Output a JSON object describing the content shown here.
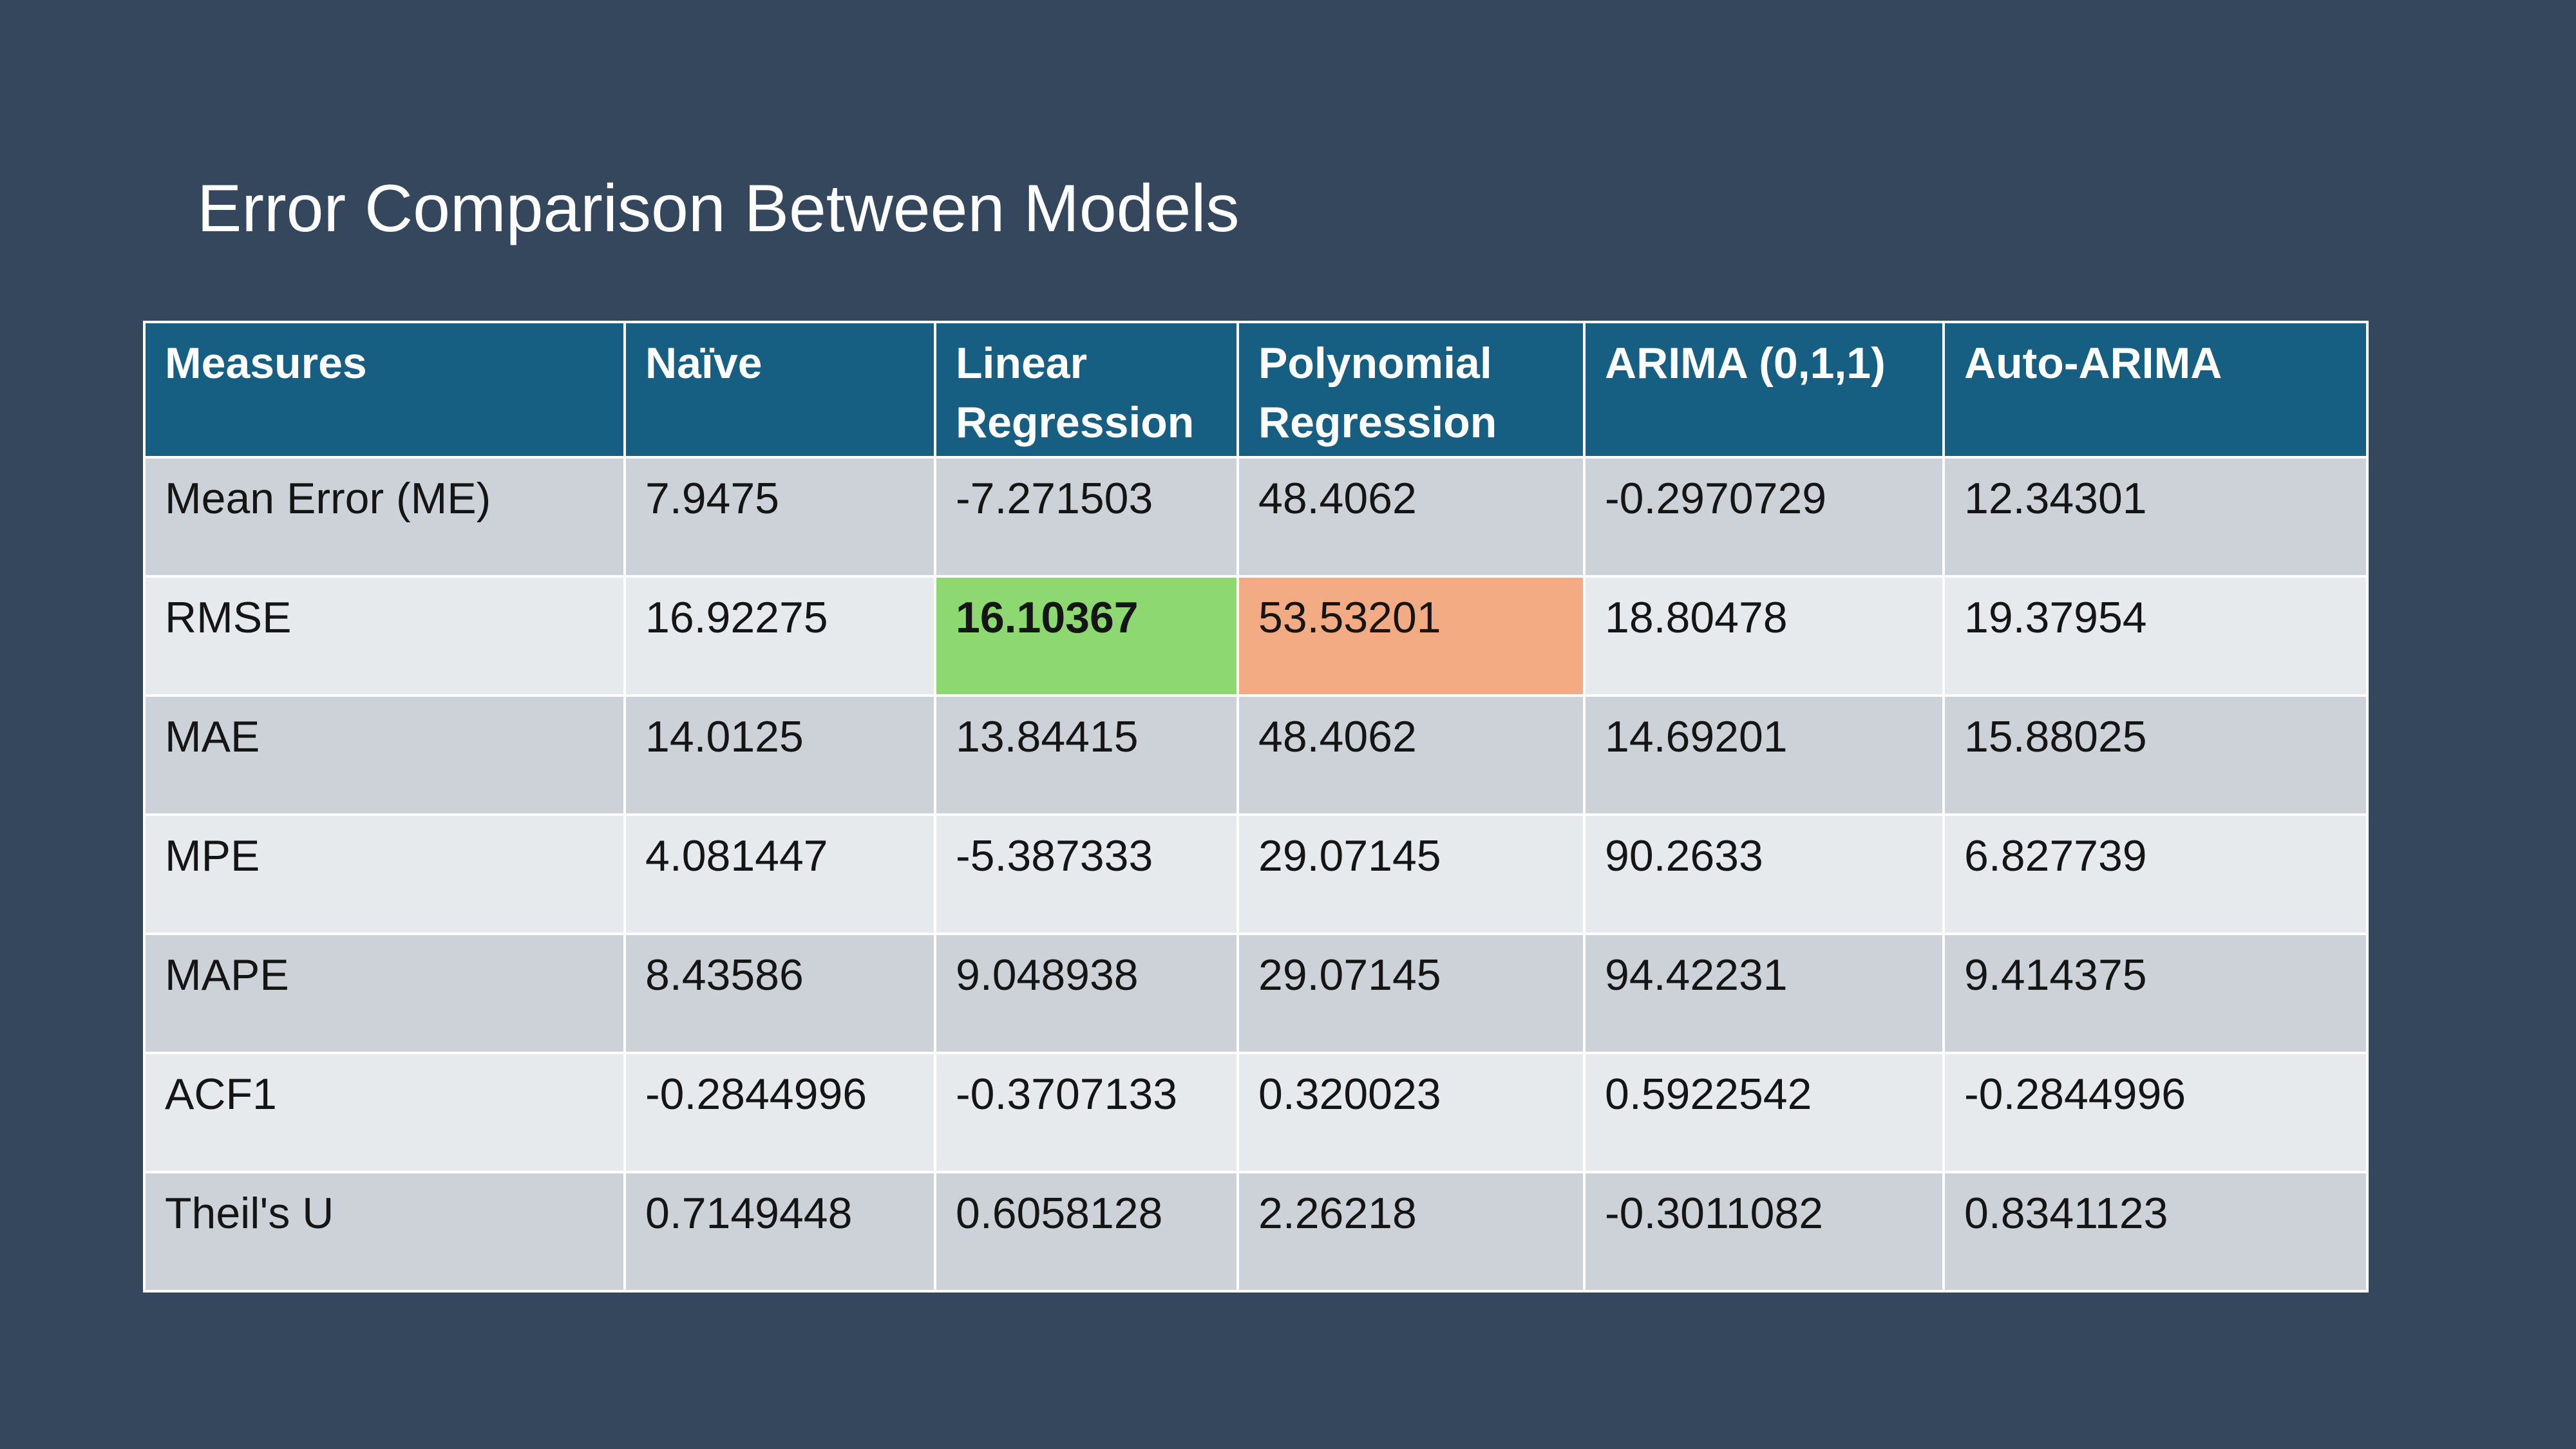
{
  "title": "Error Comparison Between Models",
  "table": {
    "headers": [
      "Measures",
      "Naïve",
      "Linear Regression",
      "Polynomial Regression",
      "ARIMA (0,1,1)",
      "Auto-ARIMA"
    ],
    "rows": [
      {
        "measure": "Mean Error (ME)",
        "values": [
          "7.9475",
          "-7.271503",
          "48.4062",
          "-0.2970729",
          "12.34301"
        ]
      },
      {
        "measure": "RMSE",
        "values": [
          "16.92275",
          "16.10367",
          "53.53201",
          "18.80478",
          "19.37954"
        ]
      },
      {
        "measure": "MAE",
        "values": [
          "14.0125",
          "13.84415",
          "48.4062",
          "14.69201",
          "15.88025"
        ]
      },
      {
        "measure": "MPE",
        "values": [
          "4.081447",
          "-5.387333",
          "29.07145",
          "90.2633",
          "6.827739"
        ]
      },
      {
        "measure": "MAPE",
        "values": [
          "8.43586",
          "9.048938",
          "29.07145",
          "94.42231",
          "9.414375"
        ]
      },
      {
        "measure": "ACF1",
        "values": [
          "-0.2844996",
          "-0.3707133",
          "0.320023",
          "0.5922542",
          "-0.2844996"
        ]
      },
      {
        "measure": "Theil's U",
        "values": [
          "0.7149448",
          "0.6058128",
          "2.26218",
          "-0.3011082",
          "0.8341123"
        ]
      }
    ]
  },
  "highlights": {
    "best_color": "#8ed871",
    "worst_color": "#f3ab84",
    "header_color": "#165e82",
    "background_color": "#35475c"
  }
}
